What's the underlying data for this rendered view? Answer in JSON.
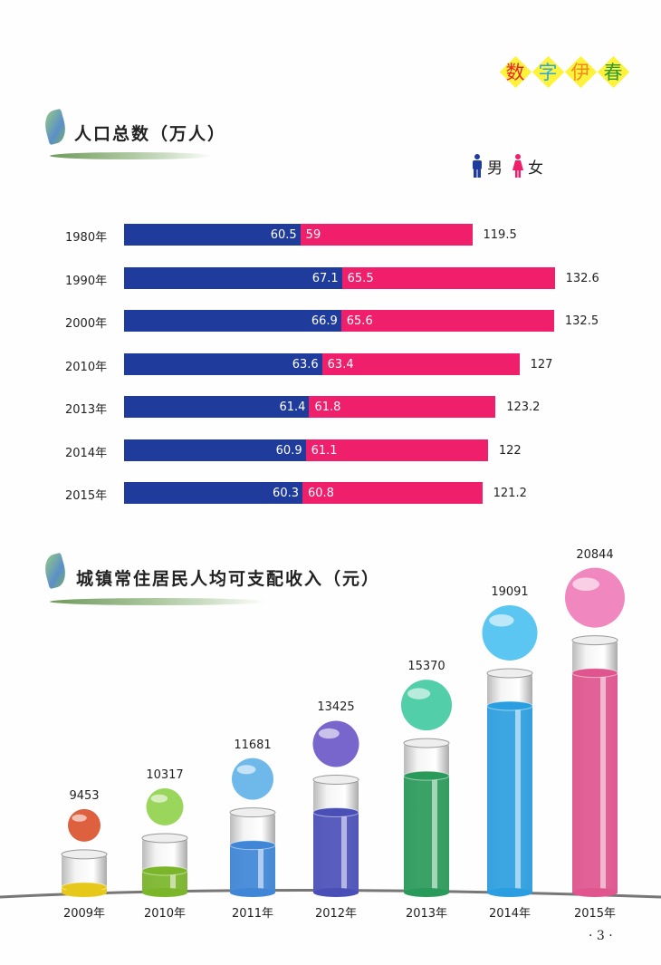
{
  "logo": {
    "chars": [
      "数",
      "字",
      "伊",
      "春"
    ],
    "colors": [
      "#e8242a",
      "#2aa7e0",
      "#f08a1e",
      "#2e9a3a"
    ]
  },
  "population": {
    "title": "人口总数（万人）",
    "legend": {
      "male": "男",
      "female": "女"
    },
    "chart_data": {
      "type": "bar",
      "stacked": true,
      "orientation": "horizontal",
      "categories": [
        "1980年",
        "1990年",
        "2000年",
        "2010年",
        "2013年",
        "2014年",
        "2015年"
      ],
      "series": [
        {
          "name": "男",
          "color": "#1f3b9c",
          "values": [
            60.5,
            67.1,
            66.9,
            63.6,
            61.4,
            60.9,
            60.3
          ]
        },
        {
          "name": "女",
          "color": "#ef1f6b",
          "values": [
            59,
            65.5,
            65.6,
            63.4,
            61.8,
            61.1,
            60.8
          ]
        }
      ],
      "totals": [
        "119.5",
        "132.6",
        "132.5",
        "127",
        "123.2",
        "122",
        "121.2"
      ]
    }
  },
  "income": {
    "title": "城镇常住居民人均可支配收入（元）",
    "chart_data": {
      "type": "bar",
      "categories": [
        "2009年",
        "2010年",
        "2011年",
        "2012年",
        "2013年",
        "2014年",
        "2015年"
      ],
      "values": [
        9453,
        10317,
        11681,
        13425,
        15370,
        19091,
        20844
      ],
      "colors": [
        "#e6c81a",
        "#7bb52a",
        "#3f86d6",
        "#4a4fb8",
        "#2a9a5a",
        "#2a9ee0",
        "#e0558e"
      ],
      "globe_colors": [
        "#d9502a",
        "#8fd04a",
        "#5fb0e8",
        "#6a55c8",
        "#3fc9a0",
        "#48c0f0",
        "#f07ab8"
      ]
    }
  },
  "page_number": "· 3 ·"
}
